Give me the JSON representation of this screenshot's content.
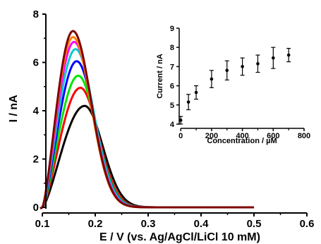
{
  "chart_data": [
    {
      "type": "line",
      "title": "",
      "xlabel": "E / V (vs. Ag/AgCl/LiCl 10 mM)",
      "ylabel": "I / nA",
      "xlim": [
        0.1,
        0.6
      ],
      "ylim": [
        0,
        8
      ],
      "x_ticks": [
        "0.1",
        "0.2",
        "0.3",
        "0.4",
        "0.5",
        "0.6"
      ],
      "y_ticks": [
        "0",
        "2",
        "4",
        "6",
        "8"
      ],
      "grid": false,
      "legend": "none",
      "peak_shape": {
        "onset_potential": 0.1,
        "end_potential": 0.5,
        "baseline_current": 0.0
      },
      "series": [
        {
          "color": "#000000",
          "peak_potential": 0.18,
          "peak_current": 4.2
        },
        {
          "color": "#ff0000",
          "peak_potential": 0.172,
          "peak_current": 4.95
        },
        {
          "color": "#00e600",
          "peak_potential": 0.168,
          "peak_current": 5.45
        },
        {
          "color": "#0000ff",
          "peak_potential": 0.165,
          "peak_current": 6.05
        },
        {
          "color": "#00cccc",
          "peak_potential": 0.163,
          "peak_current": 6.55
        },
        {
          "color": "#ff00ff",
          "peak_potential": 0.16,
          "peak_current": 6.85
        },
        {
          "color": "#ff8000",
          "peak_potential": 0.158,
          "peak_current": 7.05
        },
        {
          "color": "#7f0000",
          "peak_potential": 0.158,
          "peak_current": 7.3
        }
      ]
    },
    {
      "type": "scatter",
      "title": "",
      "xlabel": "Concentration / µM",
      "ylabel": "Current / nA",
      "xlim": [
        -10,
        800
      ],
      "ylim": [
        4,
        9
      ],
      "x_ticks": [
        "0",
        "200",
        "400",
        "600",
        "800"
      ],
      "y_ticks": [
        "4",
        "5",
        "6",
        "7",
        "8",
        "9"
      ],
      "grid": false,
      "legend": "none",
      "marker_color": "#000000",
      "x": [
        0,
        50,
        100,
        200,
        300,
        400,
        500,
        600,
        700
      ],
      "y": [
        4.2,
        5.15,
        5.65,
        6.35,
        6.8,
        7.0,
        7.15,
        7.45,
        7.6
      ],
      "error": [
        0.2,
        0.4,
        0.35,
        0.45,
        0.5,
        0.45,
        0.45,
        0.55,
        0.35
      ]
    }
  ]
}
